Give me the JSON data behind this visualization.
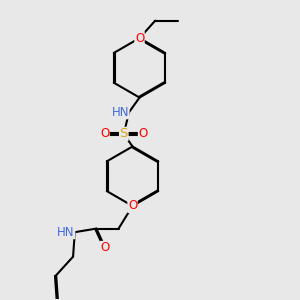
{
  "background_color": "#e8e8e8",
  "atom_colors": {
    "C": "#000000",
    "N": "#4169E1",
    "O": "#FF0000",
    "S": "#DAA520",
    "H": "#4169E1"
  },
  "bond_color": "#000000",
  "bond_width": 1.5,
  "font_size_atom": 8.5
}
